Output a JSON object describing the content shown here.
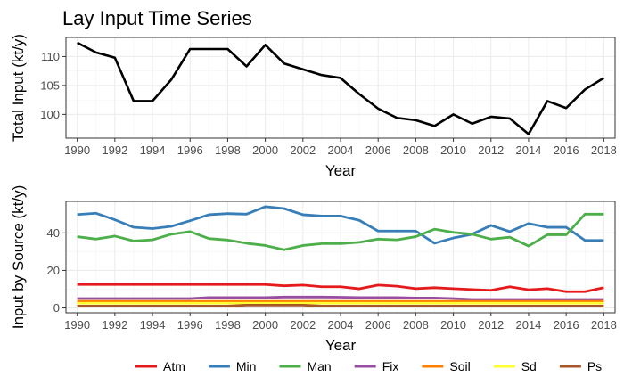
{
  "chart_data": [
    {
      "type": "line",
      "title": "Lay Input Time Series",
      "xlabel": "Year",
      "ylabel": "Total Input (kt/y)",
      "x": [
        1990,
        1991,
        1992,
        1993,
        1994,
        1995,
        1996,
        1997,
        1998,
        1999,
        2000,
        2001,
        2002,
        2003,
        2004,
        2005,
        2006,
        2007,
        2008,
        2009,
        2010,
        2011,
        2012,
        2013,
        2014,
        2015,
        2016,
        2017,
        2018
      ],
      "xlim": [
        1989.4,
        2018.6
      ],
      "ylim": [
        95.9,
        113.3
      ],
      "x_ticks": [
        1990,
        1992,
        1994,
        1996,
        1998,
        2000,
        2002,
        2004,
        2006,
        2008,
        2010,
        2012,
        2014,
        2016,
        2018
      ],
      "y_ticks": [
        100,
        105,
        110
      ],
      "grid": true,
      "series": [
        {
          "color": "#000000",
          "values": [
            112.4,
            110.7,
            109.8,
            102.3,
            102.3,
            106.0,
            111.3,
            111.3,
            111.3,
            108.3,
            112.0,
            108.8,
            107.8,
            106.8,
            106.3,
            103.5,
            101.0,
            99.4,
            99.0,
            98.0,
            100.0,
            98.4,
            99.6,
            99.3,
            96.6,
            102.3,
            101.1,
            104.3,
            106.3
          ]
        }
      ]
    },
    {
      "type": "line",
      "xlabel": "Year",
      "ylabel": "Input by Source (kt/y)",
      "x": [
        1990,
        1991,
        1992,
        1993,
        1994,
        1995,
        1996,
        1997,
        1998,
        1999,
        2000,
        2001,
        2002,
        2003,
        2004,
        2005,
        2006,
        2007,
        2008,
        2009,
        2010,
        2011,
        2012,
        2013,
        2014,
        2015,
        2016,
        2017,
        2018
      ],
      "xlim": [
        1989.4,
        2018.6
      ],
      "ylim": [
        -2.6,
        56.8
      ],
      "x_ticks": [
        1990,
        1992,
        1994,
        1996,
        1998,
        2000,
        2002,
        2004,
        2006,
        2008,
        2010,
        2012,
        2014,
        2016,
        2018
      ],
      "y_ticks": [
        0,
        20,
        40
      ],
      "grid": true,
      "legend_position": "bottom",
      "series": [
        {
          "name": "Atm",
          "color": "#e41a1c",
          "values": [
            12.5,
            12.5,
            12.5,
            12.5,
            12.5,
            12.5,
            12.5,
            12.5,
            12.5,
            12.5,
            12.5,
            11.8,
            12.2,
            11.3,
            11.3,
            10.2,
            12.2,
            11.6,
            10.3,
            10.8,
            10.3,
            9.8,
            9.4,
            11.3,
            9.7,
            10.3,
            8.7,
            8.7,
            10.8
          ]
        },
        {
          "name": "Min",
          "color": "#377eb8",
          "values": [
            49.8,
            50.5,
            47.0,
            43.0,
            42.3,
            43.5,
            46.5,
            49.7,
            50.3,
            50.0,
            54.0,
            53.0,
            49.7,
            49.0,
            49.0,
            46.7,
            41.0,
            41.0,
            41.0,
            34.5,
            37.3,
            39.3,
            44.0,
            40.7,
            45.0,
            43.0,
            43.0,
            36.0,
            36.0
          ]
        },
        {
          "name": "Man",
          "color": "#4daf4a",
          "values": [
            38.0,
            36.7,
            38.3,
            35.7,
            36.3,
            39.3,
            40.7,
            37.0,
            36.2,
            34.5,
            33.3,
            31.0,
            33.3,
            34.3,
            34.3,
            35.0,
            36.7,
            36.3,
            38.0,
            42.0,
            40.3,
            39.3,
            36.7,
            37.7,
            33.0,
            39.0,
            39.0,
            50.0,
            50.0
          ]
        },
        {
          "name": "Fix",
          "color": "#984ea3",
          "values": [
            5.0,
            5.0,
            5.0,
            5.0,
            5.0,
            5.0,
            5.0,
            5.5,
            5.5,
            5.5,
            5.5,
            5.8,
            5.8,
            5.8,
            5.7,
            5.5,
            5.5,
            5.5,
            5.3,
            5.3,
            5.0,
            4.5,
            4.5,
            4.5,
            4.5,
            4.5,
            4.5,
            4.5,
            4.5
          ]
        },
        {
          "name": "Soil",
          "color": "#ff7f00",
          "values": [
            3.5,
            3.5,
            3.5,
            3.5,
            3.5,
            3.5,
            3.5,
            3.5,
            3.5,
            3.5,
            3.5,
            3.5,
            3.5,
            3.5,
            3.5,
            3.5,
            3.5,
            3.5,
            3.5,
            3.5,
            3.5,
            3.5,
            3.5,
            3.5,
            3.5,
            3.5,
            3.5,
            3.5,
            3.5
          ]
        },
        {
          "name": "Sd",
          "color": "#ffff33",
          "values": [
            2.5,
            2.5,
            2.5,
            2.5,
            2.5,
            2.5,
            2.5,
            2.5,
            2.5,
            2.5,
            2.5,
            2.5,
            2.5,
            2.5,
            2.5,
            2.5,
            2.5,
            2.5,
            2.5,
            2.5,
            2.5,
            2.5,
            2.5,
            2.5,
            2.5,
            2.5,
            2.5,
            2.5,
            2.5
          ]
        },
        {
          "name": "Ps",
          "color": "#a65628",
          "values": [
            1.0,
            1.0,
            1.0,
            1.0,
            1.0,
            1.0,
            1.0,
            1.0,
            1.0,
            1.5,
            1.5,
            1.5,
            1.5,
            1.0,
            1.0,
            1.0,
            1.0,
            1.0,
            1.0,
            1.0,
            1.0,
            1.0,
            1.0,
            1.0,
            1.0,
            1.0,
            1.0,
            1.0,
            1.0
          ]
        }
      ]
    }
  ]
}
